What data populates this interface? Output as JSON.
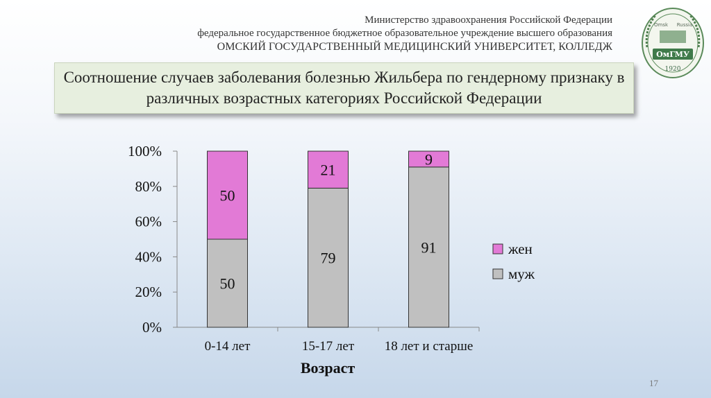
{
  "header": {
    "ministry": "Министерство здравоохранения Российской Федерации",
    "institution": "федеральное государственное бюджетное образовательное учреждение высшего образования",
    "university": "ОМСКИЙ ГОСУДАРСТВЕННЫЙ МЕДИЦИНСКИЙ УНИВЕРСИТЕТ, КОЛЛЕДЖ"
  },
  "logo": {
    "text_top_left": "Omsk",
    "text_top_right": "Russia",
    "name": "ОмГМУ",
    "year": "1920"
  },
  "slide_title": "Соотношение случаев заболевания болезнью Жильбера по гендерному признаку в различных возрастных категориях Российской Федерации",
  "chart_data": {
    "type": "bar",
    "stacked": "percent",
    "categories": [
      "0-14 лет",
      "15-17 лет",
      "18 лет и старше"
    ],
    "series": [
      {
        "name": "муж",
        "values": [
          50,
          79,
          91
        ],
        "color": "#c0c0c0"
      },
      {
        "name": "жен",
        "values": [
          50,
          21,
          9
        ],
        "color": "#e27ad6"
      }
    ],
    "xlabel": "Возраст",
    "ylabel": "",
    "ylim": [
      0,
      100
    ],
    "yticks": [
      "0%",
      "20%",
      "40%",
      "60%",
      "80%",
      "100%"
    ],
    "legend_position": "right",
    "grid": false
  },
  "page_number": "17"
}
